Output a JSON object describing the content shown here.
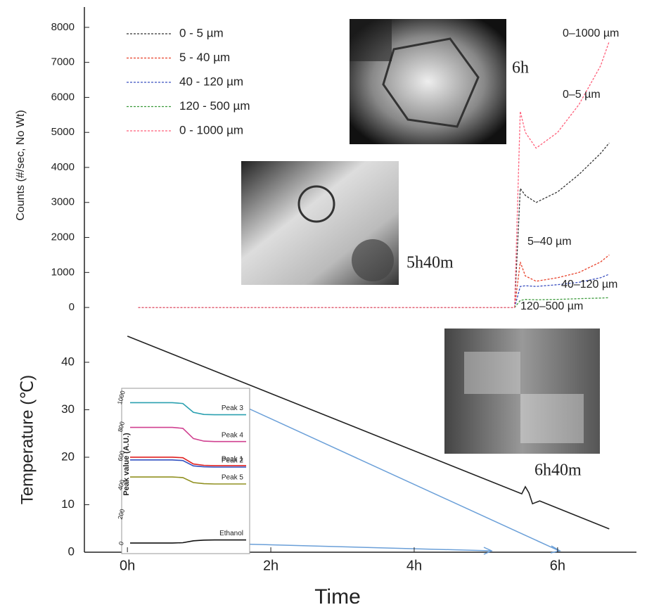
{
  "chart_data": [
    {
      "type": "line",
      "ylabel": "Counts (#/sec, No Wt)",
      "xlim": [
        -0.6,
        7.1
      ],
      "ylim": [
        -400,
        8500
      ],
      "yticks": [
        0,
        1000,
        2000,
        3000,
        4000,
        5000,
        6000,
        7000,
        8000
      ],
      "legend": "top-left",
      "dashed": true,
      "x": [
        0.15,
        1,
        2,
        3,
        4,
        5,
        5.4,
        5.48,
        5.55,
        5.7,
        6,
        6.3,
        6.6,
        6.72
      ],
      "series": [
        {
          "name": "0 - 5 µm",
          "color": "#333333",
          "values": [
            0,
            0,
            0,
            0,
            0,
            0,
            0,
            3400,
            3200,
            3000,
            3300,
            3800,
            4400,
            4700
          ]
        },
        {
          "name": "5 - 40 µm",
          "color": "#e8412a",
          "values": [
            0,
            0,
            0,
            0,
            0,
            0,
            0,
            1300,
            900,
            750,
            850,
            1000,
            1300,
            1500
          ]
        },
        {
          "name": "40 - 120 µm",
          "color": "#3a4fc0",
          "values": [
            0,
            0,
            0,
            0,
            0,
            0,
            0,
            600,
            620,
            600,
            650,
            720,
            850,
            950
          ]
        },
        {
          "name": "120 - 500 µm",
          "color": "#3a9a3a",
          "values": [
            0,
            0,
            0,
            0,
            0,
            0,
            0,
            200,
            230,
            220,
            230,
            250,
            270,
            280
          ]
        },
        {
          "name": "0 - 1000 µm",
          "color": "#ff5f7a",
          "values": [
            0,
            0,
            0,
            0,
            0,
            0,
            0,
            5600,
            5000,
            4550,
            5000,
            5800,
            6900,
            7600
          ]
        }
      ],
      "annotations": [
        "0–1000 µm",
        "0–5 µm",
        "5–40 µm",
        "40–120 µm",
        "120–500 µm",
        "6h",
        "5h40m",
        "6h40m"
      ]
    },
    {
      "type": "line",
      "xlabel": "Time",
      "ylabel": "Temperature (℃)",
      "xlim": [
        -0.6,
        7.1
      ],
      "ylim": [
        0,
        47
      ],
      "xticks": [
        {
          "value": 0,
          "label": "0h"
        },
        {
          "value": 2,
          "label": "2h"
        },
        {
          "value": 4,
          "label": "4h"
        },
        {
          "value": 6,
          "label": "6h"
        }
      ],
      "yticks": [
        0,
        10,
        20,
        30,
        40
      ],
      "x": [
        0,
        5.5,
        5.55,
        5.6,
        5.65,
        5.75,
        6.72
      ],
      "series": [
        {
          "color": "#222222",
          "values": [
            45.5,
            12.3,
            13.8,
            12.5,
            10.2,
            10.8,
            4.9
          ]
        }
      ]
    },
    {
      "type": "line",
      "ylabel": "Peak value (A.U.)",
      "ylim": [
        -60,
        1050
      ],
      "yticks": [
        0,
        200,
        400,
        600,
        800,
        1000
      ],
      "series": [
        {
          "name": "Peak 3",
          "color": "#2aa0b0",
          "values": [
            966,
            966,
            966,
            966,
            966,
            960,
            900,
            885,
            883,
            883,
            883,
            883
          ]
        },
        {
          "name": "Peak 4",
          "color": "#d04090",
          "values": [
            796,
            796,
            796,
            796,
            796,
            790,
            720,
            702,
            699,
            699,
            699,
            699
          ]
        },
        {
          "name": "Peak 1",
          "color": "#e02020",
          "values": [
            592,
            592,
            592,
            592,
            592,
            588,
            545,
            536,
            534,
            534,
            534,
            534
          ]
        },
        {
          "name": "Peak 2",
          "color": "#3050c0",
          "values": [
            573,
            573,
            573,
            573,
            573,
            569,
            532,
            526,
            524,
            524,
            524,
            524
          ]
        },
        {
          "name": "Peak 5",
          "color": "#909020",
          "values": [
            456,
            456,
            456,
            456,
            456,
            452,
            418,
            410,
            408,
            408,
            408,
            408
          ]
        },
        {
          "name": "Ethanol",
          "color": "#111111",
          "values": [
            3,
            3,
            3,
            3,
            3,
            5,
            18,
            23,
            24,
            24,
            24,
            24
          ]
        }
      ]
    }
  ]
}
